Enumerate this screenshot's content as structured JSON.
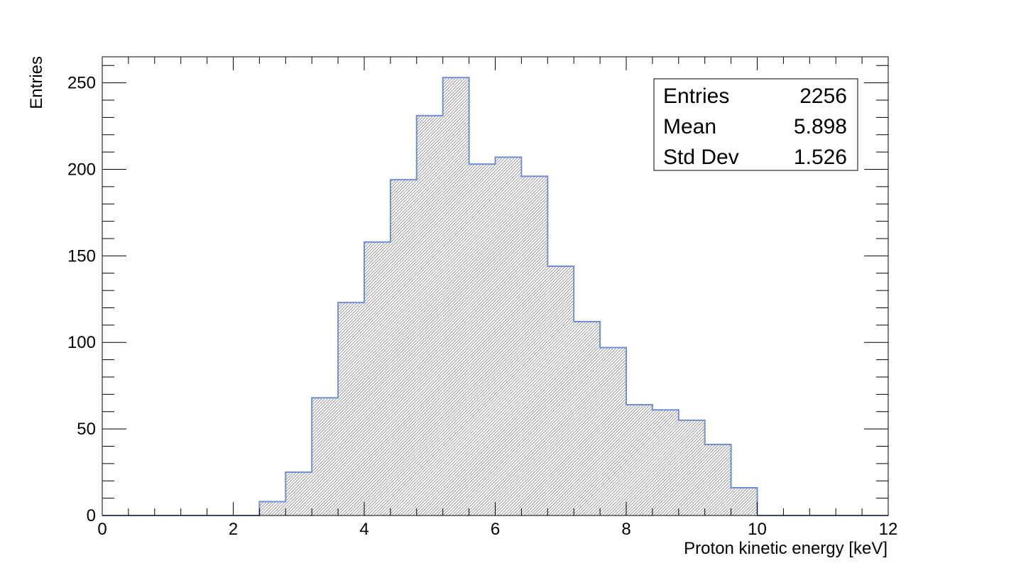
{
  "chart_data": {
    "type": "bar",
    "title": "",
    "xlabel": "Proton kinetic energy [keV]",
    "ylabel": "Entries",
    "xlim": [
      0,
      12
    ],
    "ylim": [
      0,
      265
    ],
    "bin_edges": [
      2.4,
      2.8,
      3.2,
      3.6,
      4.0,
      4.4,
      4.8,
      5.2,
      5.6,
      6.0,
      6.4,
      6.8,
      7.2,
      7.6,
      8.0,
      8.4,
      8.8,
      9.2,
      9.6,
      10.0
    ],
    "values": [
      8,
      25,
      68,
      123,
      158,
      194,
      231,
      253,
      203,
      207,
      196,
      144,
      112,
      97,
      64,
      61,
      55,
      41,
      16
    ],
    "x_ticks": [
      "0",
      "2",
      "4",
      "6",
      "8",
      "10",
      "12"
    ],
    "y_ticks": [
      "0",
      "50",
      "100",
      "150",
      "200",
      "250"
    ],
    "grid": false,
    "legend": "none",
    "fill_style": "hatched",
    "line_color": "#6f8fd6",
    "fill_color": "#808080"
  },
  "stats_box": {
    "rows": [
      {
        "label": "Entries",
        "value": "2256"
      },
      {
        "label": "Mean",
        "value": "5.898"
      },
      {
        "label": "Std Dev",
        "value": "1.526"
      }
    ],
    "position": "top-right"
  }
}
